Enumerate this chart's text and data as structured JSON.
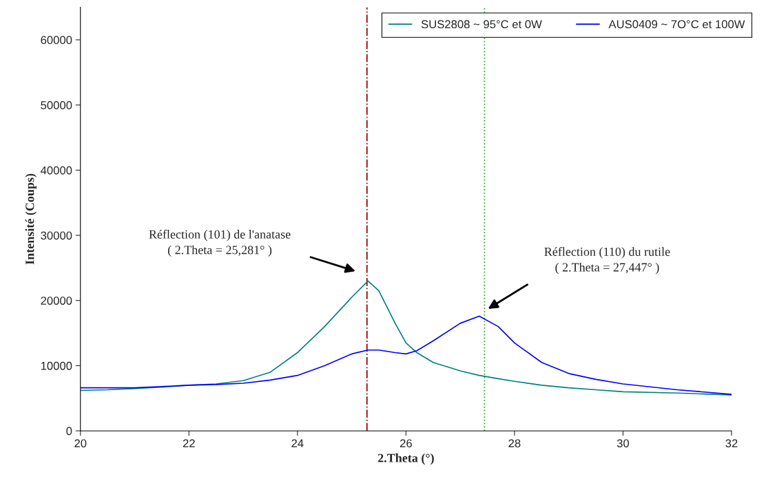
{
  "chart_data": {
    "type": "line",
    "xlabel": "2.Theta (°)",
    "ylabel": "Intensité (Coups)",
    "xlim": [
      20,
      32
    ],
    "xticks": [
      20,
      22,
      24,
      26,
      28,
      30,
      32
    ],
    "ylim": [
      0,
      65000
    ],
    "yticks": [
      0,
      10000,
      20000,
      30000,
      40000,
      50000,
      60000
    ],
    "grid": false,
    "legend": "top right",
    "marker": "none",
    "line_style": "solid",
    "series": [
      {
        "name": "SUS2808 ~ 95°C et 0W",
        "color": "#008080",
        "x": [
          20,
          20.5,
          21,
          21.5,
          22,
          22.5,
          23,
          23.5,
          24,
          24.5,
          25,
          25.3,
          25.5,
          25.8,
          26,
          26.2,
          26.5,
          27,
          27.35,
          27.7,
          28,
          28.5,
          29,
          29.5,
          30,
          31,
          32
        ],
        "values": [
          6200,
          6300,
          6500,
          6700,
          7000,
          7200,
          7700,
          9000,
          12000,
          16000,
          20500,
          23000,
          21500,
          16500,
          13500,
          12000,
          10500,
          9200,
          8500,
          8000,
          7600,
          7000,
          6600,
          6300,
          6000,
          5800,
          5500
        ]
      },
      {
        "name": "AUS0409 ~ 7O°C et 100W",
        "color": "#0000ff",
        "x": [
          20,
          20.5,
          21,
          21.5,
          22,
          22.5,
          23,
          23.5,
          24,
          24.5,
          25,
          25.3,
          25.5,
          25.8,
          26,
          26.2,
          26.5,
          27,
          27.35,
          27.7,
          28,
          28.5,
          29,
          29.5,
          30,
          31,
          32
        ],
        "values": [
          6600,
          6600,
          6600,
          6800,
          7000,
          7100,
          7300,
          7800,
          8500,
          10000,
          11800,
          12400,
          12400,
          12000,
          11800,
          12300,
          13800,
          16500,
          17600,
          16000,
          13500,
          10500,
          8800,
          7900,
          7200,
          6300,
          5600
        ]
      }
    ],
    "ref_lines": [
      {
        "axis": "x",
        "value": 25.281,
        "color": "#990000",
        "line_style": "dashdot"
      },
      {
        "axis": "x",
        "value": 27.447,
        "color": "#33aa33",
        "line_style": "dotted"
      }
    ],
    "annotations": [
      "Réflection (101) de l'anatase\n( 2.Theta = 25,281° )",
      "Réflection (110) du rutile\n( 2.Theta = 27,447° )"
    ]
  }
}
